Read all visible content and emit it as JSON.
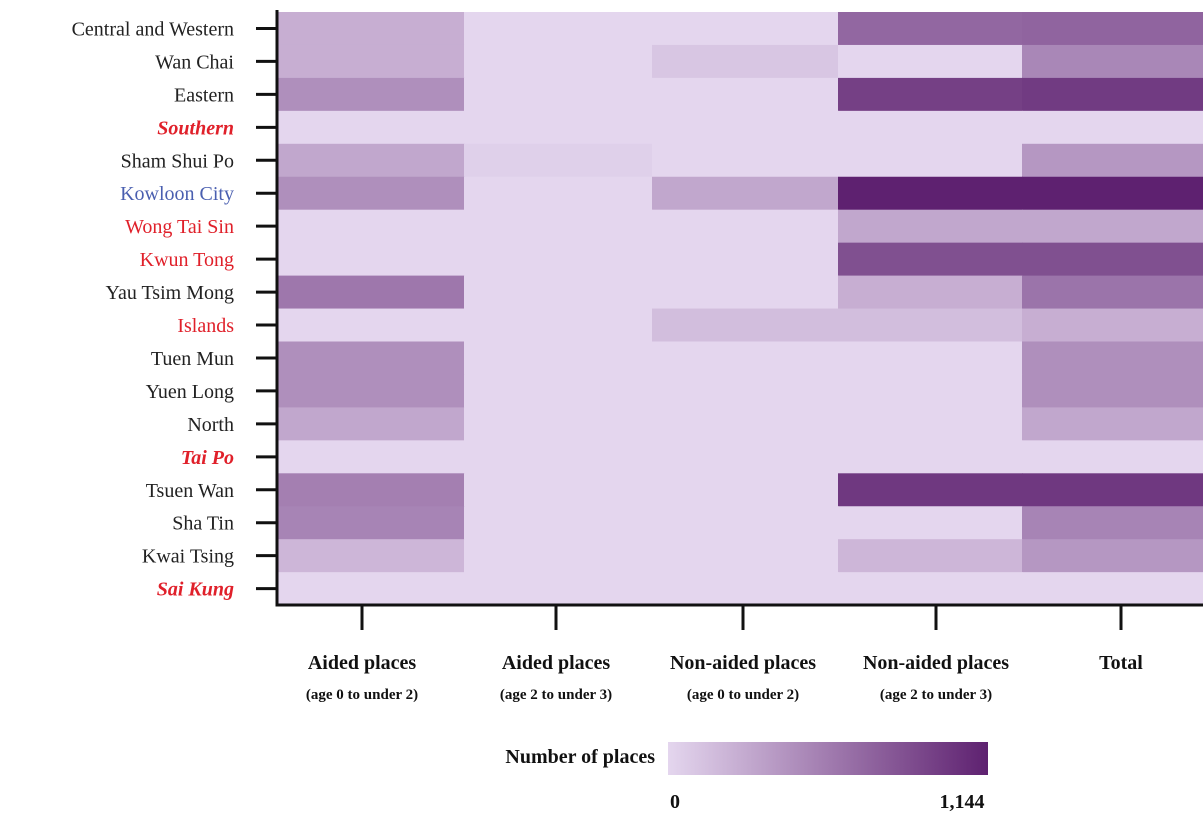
{
  "chart_data": {
    "type": "heatmap",
    "rows": [
      {
        "label": "Central and Western",
        "color": "#222222",
        "bold": false,
        "italic": false
      },
      {
        "label": "Wan Chai",
        "color": "#222222",
        "bold": false,
        "italic": false
      },
      {
        "label": "Eastern",
        "color": "#222222",
        "bold": false,
        "italic": false
      },
      {
        "label": "Southern",
        "color": "#e0202a",
        "bold": true,
        "italic": true
      },
      {
        "label": "Sham Shui Po",
        "color": "#222222",
        "bold": false,
        "italic": false
      },
      {
        "label": "Kowloon City",
        "color": "#4a5fb0",
        "bold": false,
        "italic": false
      },
      {
        "label": "Wong Tai Sin",
        "color": "#e0202a",
        "bold": false,
        "italic": false
      },
      {
        "label": "Kwun Tong",
        "color": "#e0202a",
        "bold": false,
        "italic": false
      },
      {
        "label": "Yau Tsim Mong",
        "color": "#222222",
        "bold": false,
        "italic": false
      },
      {
        "label": "Islands",
        "color": "#e0202a",
        "bold": false,
        "italic": false
      },
      {
        "label": "Tuen Mun",
        "color": "#222222",
        "bold": false,
        "italic": false
      },
      {
        "label": "Yuen Long",
        "color": "#222222",
        "bold": false,
        "italic": false
      },
      {
        "label": "North",
        "color": "#222222",
        "bold": false,
        "italic": false
      },
      {
        "label": "Tai Po",
        "color": "#e0202a",
        "bold": true,
        "italic": true
      },
      {
        "label": "Tsuen Wan",
        "color": "#222222",
        "bold": false,
        "italic": false
      },
      {
        "label": "Sha Tin",
        "color": "#222222",
        "bold": false,
        "italic": false
      },
      {
        "label": "Kwai Tsing",
        "color": "#222222",
        "bold": false,
        "italic": false
      },
      {
        "label": "Sai Kung",
        "color": "#e0202a",
        "bold": true,
        "italic": true
      }
    ],
    "columns": [
      {
        "label": "Aided places",
        "sublabel": "(age 0 to under 2)"
      },
      {
        "label": "Aided places",
        "sublabel": "(age 2 to under 3)"
      },
      {
        "label": "Non-aided places",
        "sublabel": "(age 0 to under 2)"
      },
      {
        "label": "Non-aided places",
        "sublabel": "(age 2 to under 3)"
      },
      {
        "label": "Total",
        "sublabel": ""
      }
    ],
    "values": [
      [
        250,
        0,
        0,
        700,
        720
      ],
      [
        250,
        0,
        100,
        0,
        500
      ],
      [
        450,
        0,
        0,
        950,
        980
      ],
      [
        0,
        0,
        0,
        0,
        0
      ],
      [
        300,
        40,
        0,
        0,
        400
      ],
      [
        450,
        0,
        300,
        1144,
        1144
      ],
      [
        0,
        0,
        0,
        300,
        300
      ],
      [
        0,
        0,
        0,
        850,
        850
      ],
      [
        600,
        0,
        0,
        250,
        620
      ],
      [
        0,
        0,
        150,
        150,
        250
      ],
      [
        450,
        0,
        0,
        0,
        450
      ],
      [
        450,
        0,
        0,
        0,
        450
      ],
      [
        300,
        0,
        0,
        0,
        300
      ],
      [
        0,
        0,
        0,
        0,
        0
      ],
      [
        550,
        0,
        0,
        1000,
        1000
      ],
      [
        520,
        0,
        0,
        0,
        520
      ],
      [
        200,
        0,
        0,
        200,
        400
      ],
      [
        0,
        0,
        0,
        0,
        0
      ]
    ],
    "colorbar": {
      "title": "Number of places",
      "min": 0,
      "max": 1144,
      "min_label": "0",
      "max_label": "1,144",
      "color_low": "#e4d6ee",
      "color_high": "#5e2170"
    },
    "grid": false,
    "legend_position": "bottom"
  }
}
